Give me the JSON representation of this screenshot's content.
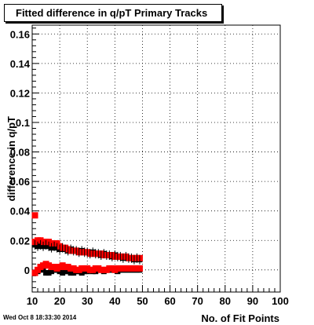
{
  "chart_data": {
    "type": "scatter",
    "title": "Fitted difference in q/pT Primary Tracks",
    "xlabel": "No. of Fit Points",
    "ylabel": "difference in q/pT",
    "xlim": [
      10,
      100
    ],
    "ylim": [
      -0.015,
      0.166
    ],
    "x_ticks": [
      10,
      20,
      30,
      40,
      50,
      60,
      70,
      80,
      90,
      100
    ],
    "y_ticks": [
      0,
      0.02,
      0.04,
      0.06,
      0.08,
      0.1,
      0.12,
      0.14,
      0.16
    ],
    "grid": true,
    "series": [
      {
        "color": "#000000",
        "marker": "square",
        "upper_band_x": [
          11,
          12,
          13,
          14,
          15,
          16,
          17,
          18,
          19,
          20,
          21,
          22,
          23,
          24,
          25,
          26,
          27,
          28,
          29,
          30,
          31,
          32,
          33,
          34,
          35,
          36,
          37,
          38,
          39,
          40,
          41,
          42,
          43,
          44,
          45,
          46,
          47,
          48,
          49
        ],
        "upper_band_y": [
          0.017,
          0.016,
          0.017,
          0.016,
          0.017,
          0.016,
          0.015,
          0.016,
          0.015,
          0.014,
          0.015,
          0.014,
          0.013,
          0.014,
          0.013,
          0.013,
          0.012,
          0.013,
          0.012,
          0.012,
          0.011,
          0.012,
          0.011,
          0.011,
          0.01,
          0.011,
          0.01,
          0.01,
          0.009,
          0.01,
          0.009,
          0.009,
          0.008,
          0.009,
          0.008,
          0.008,
          0.007,
          0.008,
          0.007
        ],
        "lower_band_x": [
          11,
          12,
          13,
          14,
          15,
          16,
          17,
          18,
          19,
          20,
          21,
          22,
          23,
          24,
          25,
          26,
          27,
          28,
          29,
          30,
          31,
          32,
          33,
          34,
          35,
          36,
          37,
          38,
          39,
          40,
          41,
          42,
          43,
          44,
          45,
          46,
          47,
          48,
          49
        ],
        "lower_band_y": [
          -0.002,
          -0.001,
          0.0,
          0.001,
          -0.002,
          -0.002,
          -0.001,
          0.0,
          0.0,
          -0.001,
          -0.002,
          -0.001,
          -0.001,
          -0.002,
          -0.002,
          -0.001,
          -0.001,
          -0.002,
          -0.001,
          -0.001,
          0.0,
          -0.001,
          -0.001,
          0.0,
          0.0,
          -0.001,
          0.0,
          0.0,
          0.0,
          0.0,
          -0.001,
          0.0,
          0.0,
          0.0,
          0.0,
          0.0,
          0.0,
          0.0,
          0.0
        ]
      },
      {
        "color": "#ff0000",
        "marker": "square",
        "isolated_x": [
          11
        ],
        "isolated_y": [
          0.037
        ],
        "upper_band_x": [
          11,
          12,
          13,
          14,
          15,
          16,
          17,
          18,
          19,
          20,
          21,
          22,
          23,
          24,
          25,
          26,
          27,
          28,
          29,
          30,
          31,
          32,
          33,
          34,
          35,
          36,
          37,
          38,
          39,
          40,
          41,
          42,
          43,
          44,
          45,
          46,
          47,
          48,
          49
        ],
        "upper_band_y": [
          0.019,
          0.02,
          0.02,
          0.019,
          0.019,
          0.019,
          0.018,
          0.018,
          0.018,
          0.016,
          0.015,
          0.015,
          0.014,
          0.013,
          0.013,
          0.013,
          0.012,
          0.012,
          0.012,
          0.012,
          0.011,
          0.011,
          0.011,
          0.011,
          0.011,
          0.01,
          0.01,
          0.01,
          0.01,
          0.009,
          0.009,
          0.009,
          0.009,
          0.009,
          0.008,
          0.008,
          0.008,
          0.008,
          0.008
        ],
        "lower_band_x": [
          11,
          12,
          13,
          14,
          15,
          16,
          17,
          18,
          19,
          20,
          21,
          22,
          23,
          24,
          25,
          26,
          27,
          28,
          29,
          30,
          31,
          32,
          33,
          34,
          35,
          36,
          37,
          38,
          39,
          40,
          41,
          42,
          43,
          44,
          45,
          46,
          47,
          48,
          49
        ],
        "lower_band_y": [
          -0.002,
          0.0,
          0.002,
          0.003,
          0.004,
          0.003,
          0.002,
          0.002,
          0.001,
          0.002,
          0.003,
          0.002,
          0.002,
          0.001,
          0.001,
          0.0,
          0.0,
          0.001,
          0.001,
          0.001,
          0.0,
          0.0,
          0.001,
          0.001,
          0.0,
          0.0,
          0.0,
          0.001,
          0.001,
          0.0,
          0.001,
          0.001,
          0.001,
          0.001,
          0.001,
          0.001,
          0.001,
          0.001,
          0.001
        ]
      }
    ]
  },
  "footer": {
    "timestamp": "Wed Oct  8 18:33:30 2014"
  }
}
